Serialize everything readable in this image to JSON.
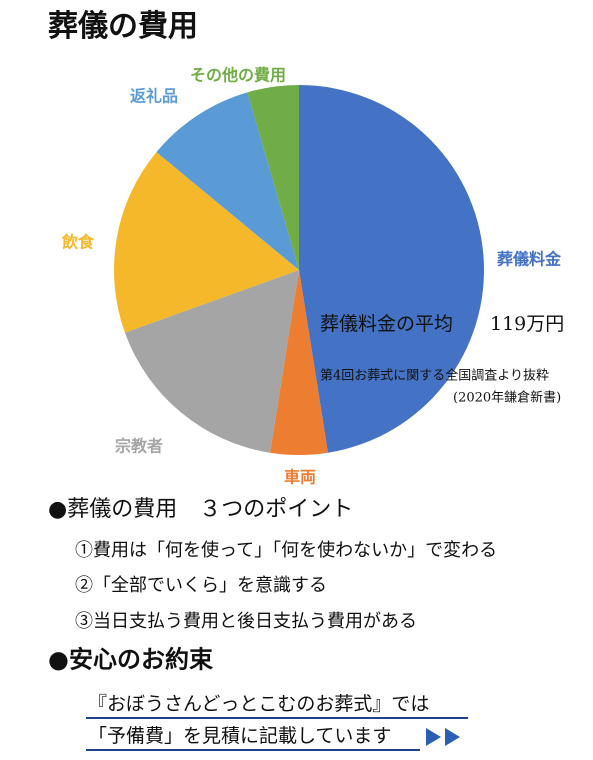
{
  "chart_data": {
    "type": "pie",
    "title": "葬儀の費用",
    "categories": [
      "葬儀料金",
      "車両",
      "宗教者",
      "飲食",
      "返礼品",
      "その他の費用"
    ],
    "values": [
      47.5,
      5,
      17,
      16.5,
      9.5,
      4.5
    ],
    "colors": [
      "#4472c4",
      "#ed7d31",
      "#a5a5a5",
      "#f4b82a",
      "#5b9bd5",
      "#70ad47"
    ],
    "annotations": [
      "葬儀料金の平均",
      "119万円",
      "第4回お葬式に関する全国調査より抜粋",
      "(2020年鎌倉新書)"
    ]
  },
  "points": {
    "heading": "●葬儀の費用　３つのポイント",
    "items": [
      "①費用は「何を使って」「何を使わないか」で変わる",
      "②「全部でいくら」を意識する",
      "③当日支払う費用と後日支払う費用がある"
    ]
  },
  "promise": {
    "heading": "●安心のお約束",
    "lines": [
      "『おぼうさんどっとこむのお葬式』では",
      "「予備費」を見積に記載しています"
    ]
  }
}
